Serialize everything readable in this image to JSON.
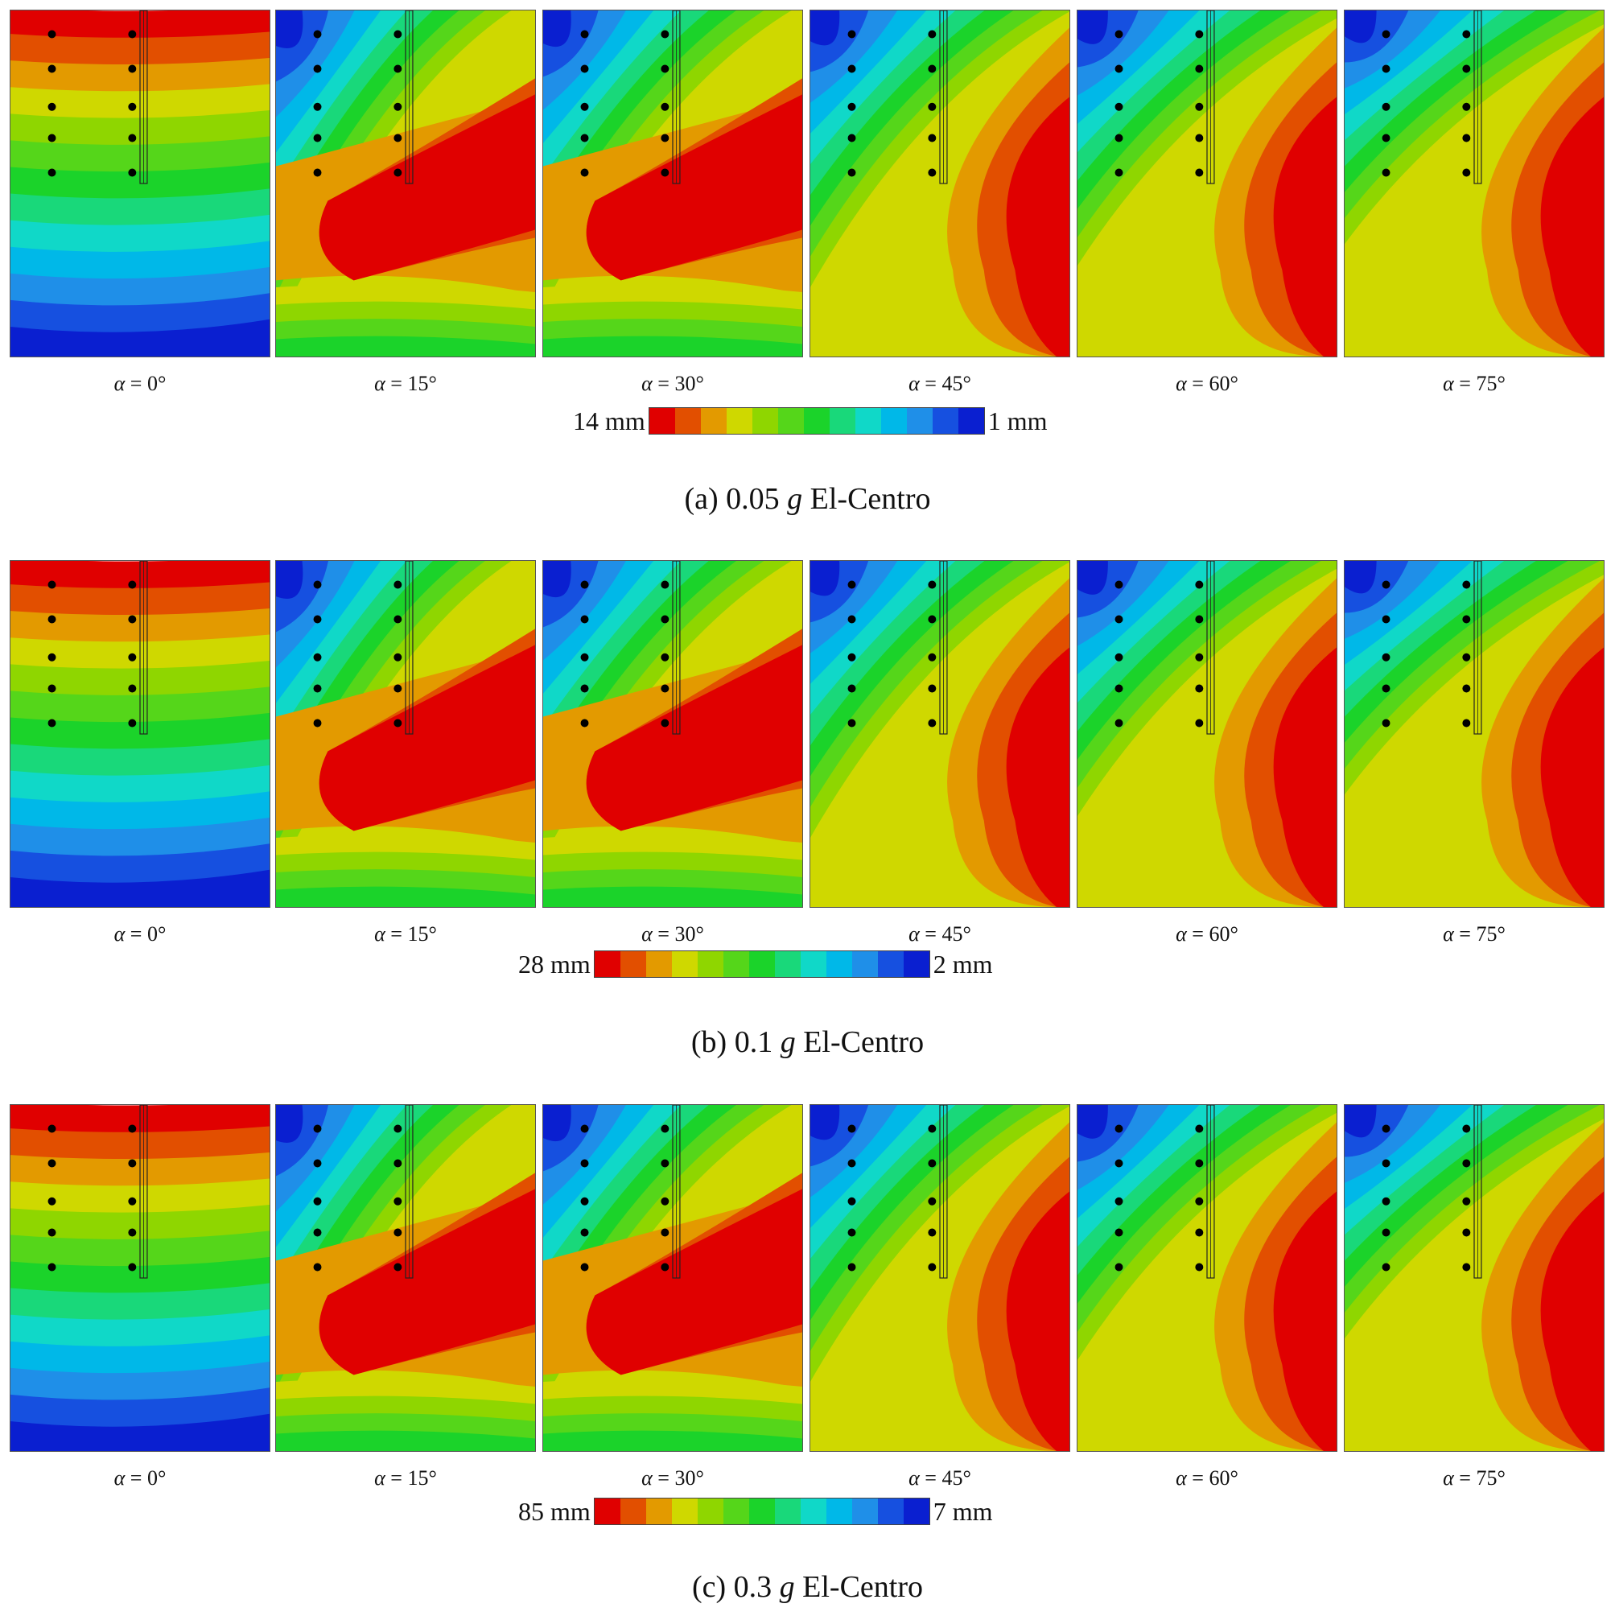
{
  "colors": {
    "red": "#e00000",
    "red_orange": "#e24f00",
    "orange": "#e39a00",
    "yellow": "#cfd800",
    "yellow_green": "#8fd600",
    "light_green": "#55d61a",
    "green": "#1bd32a",
    "sea_green": "#19d87a",
    "aqua": "#10d8c8",
    "sky": "#00b8e8",
    "light_blue": "#1f8fe8",
    "blue": "#1650e0",
    "deep_blue": "#0a1fd0",
    "legend_scale": [
      "#e00000",
      "#e24f00",
      "#e39a00",
      "#cfd800",
      "#8fd600",
      "#55d61a",
      "#1bd32a",
      "#19d87a",
      "#10d8c8",
      "#00b8e8",
      "#1f8fe8",
      "#1650e0",
      "#0a1fd0"
    ]
  },
  "angles": [
    "0°",
    "15°",
    "30°",
    "45°",
    "60°",
    "75°"
  ],
  "alpha_symbol": "α",
  "rows": [
    {
      "id": "a",
      "legend_max": "14 mm",
      "legend_min": "1 mm",
      "caption_prefix": "(a) 0.05 ",
      "caption_g": "g",
      "caption_suffix": " El-Centro"
    },
    {
      "id": "b",
      "legend_max": "28 mm",
      "legend_min": "2 mm",
      "caption_prefix": "(b) 0.1 ",
      "caption_g": "g",
      "caption_suffix": " El-Centro"
    },
    {
      "id": "c",
      "legend_max": "85 mm",
      "legend_min": "7 mm",
      "caption_prefix": "(c) 0.3 ",
      "caption_g": "g",
      "caption_suffix": " El-Centro"
    }
  ]
}
